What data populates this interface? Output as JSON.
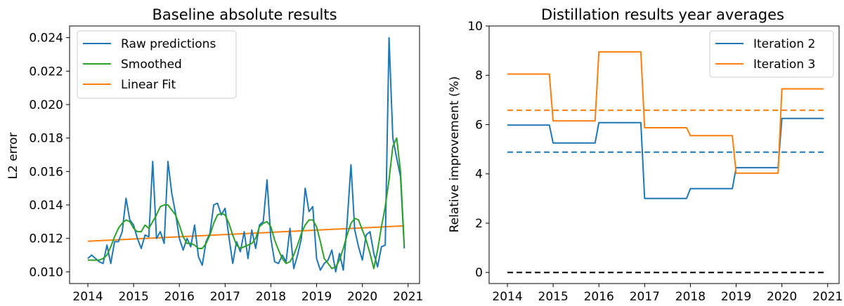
{
  "chart_data": [
    {
      "type": "line",
      "title": "Baseline absolute results",
      "xlabel": "",
      "ylabel": "L2 error",
      "xlim": [
        2013.6,
        2021.25
      ],
      "ylim": [
        0.0093,
        0.0247
      ],
      "xticks": [
        2014,
        2015,
        2016,
        2017,
        2018,
        2019,
        2020,
        2021
      ],
      "xtick_labels": [
        "2014",
        "2015",
        "2016",
        "2017",
        "2018",
        "2019",
        "2020",
        "2021"
      ],
      "yticks": [
        0.01,
        0.012,
        0.014,
        0.016,
        0.018,
        0.02,
        0.022,
        0.024
      ],
      "ytick_labels": [
        "0.010",
        "0.012",
        "0.014",
        "0.016",
        "0.018",
        "0.020",
        "0.022",
        "0.024"
      ],
      "legend_position": "top-left",
      "series": [
        {
          "name": "Raw predictions",
          "color": "#1f77b4",
          "x": [
            2014.0,
            2014.083,
            2014.167,
            2014.25,
            2014.333,
            2014.417,
            2014.5,
            2014.583,
            2014.667,
            2014.75,
            2014.833,
            2014.917,
            2015.0,
            2015.083,
            2015.167,
            2015.25,
            2015.333,
            2015.417,
            2015.5,
            2015.583,
            2015.667,
            2015.75,
            2015.833,
            2015.917,
            2016.0,
            2016.083,
            2016.167,
            2016.25,
            2016.333,
            2016.417,
            2016.5,
            2016.583,
            2016.667,
            2016.75,
            2016.833,
            2016.917,
            2017.0,
            2017.083,
            2017.167,
            2017.25,
            2017.333,
            2017.417,
            2017.5,
            2017.583,
            2017.667,
            2017.75,
            2017.833,
            2017.917,
            2018.0,
            2018.083,
            2018.167,
            2018.25,
            2018.333,
            2018.417,
            2018.5,
            2018.583,
            2018.667,
            2018.75,
            2018.833,
            2018.917,
            2019.0,
            2019.083,
            2019.167,
            2019.25,
            2019.333,
            2019.417,
            2019.5,
            2019.583,
            2019.667,
            2019.75,
            2019.833,
            2019.917,
            2020.0,
            2020.083,
            2020.167,
            2020.25,
            2020.333,
            2020.417,
            2020.5,
            2020.583,
            2020.667,
            2020.75,
            2020.833,
            2020.917
          ],
          "values": [
            0.0108,
            0.011,
            0.0108,
            0.0106,
            0.0105,
            0.0116,
            0.0105,
            0.0118,
            0.0118,
            0.0124,
            0.0144,
            0.0131,
            0.0128,
            0.012,
            0.0114,
            0.0122,
            0.0121,
            0.0166,
            0.012,
            0.0124,
            0.0117,
            0.0166,
            0.0147,
            0.0135,
            0.012,
            0.0113,
            0.012,
            0.0115,
            0.0128,
            0.0109,
            0.0104,
            0.0118,
            0.0123,
            0.014,
            0.0141,
            0.0134,
            0.0138,
            0.0121,
            0.0105,
            0.0118,
            0.0112,
            0.0124,
            0.0108,
            0.0125,
            0.0114,
            0.0128,
            0.013,
            0.0155,
            0.012,
            0.0106,
            0.0105,
            0.011,
            0.0106,
            0.0126,
            0.0102,
            0.011,
            0.012,
            0.015,
            0.0136,
            0.0139,
            0.0108,
            0.0101,
            0.0105,
            0.0107,
            0.0113,
            0.01,
            0.0111,
            0.0101,
            0.0129,
            0.0164,
            0.0125,
            0.0115,
            0.0107,
            0.0122,
            0.0124,
            0.0111,
            0.0103,
            0.0115,
            0.0116,
            0.024,
            0.018,
            0.0168,
            0.0157,
            0.0114
          ]
        },
        {
          "name": "Smoothed",
          "color": "#2ca02c",
          "x": [
            2014.0,
            2014.083,
            2014.167,
            2014.25,
            2014.333,
            2014.417,
            2014.5,
            2014.583,
            2014.667,
            2014.75,
            2014.833,
            2014.917,
            2015.0,
            2015.083,
            2015.167,
            2015.25,
            2015.333,
            2015.417,
            2015.5,
            2015.583,
            2015.667,
            2015.75,
            2015.833,
            2015.917,
            2016.0,
            2016.083,
            2016.167,
            2016.25,
            2016.333,
            2016.417,
            2016.5,
            2016.583,
            2016.667,
            2016.75,
            2016.833,
            2016.917,
            2017.0,
            2017.083,
            2017.167,
            2017.25,
            2017.333,
            2017.417,
            2017.5,
            2017.583,
            2017.667,
            2017.75,
            2017.833,
            2017.917,
            2018.0,
            2018.083,
            2018.167,
            2018.25,
            2018.333,
            2018.417,
            2018.5,
            2018.583,
            2018.667,
            2018.75,
            2018.833,
            2018.917,
            2019.0,
            2019.083,
            2019.167,
            2019.25,
            2019.333,
            2019.417,
            2019.5,
            2019.583,
            2019.667,
            2019.75,
            2019.833,
            2019.917,
            2020.0,
            2020.083,
            2020.167,
            2020.25,
            2020.333,
            2020.417,
            2020.5,
            2020.583,
            2020.667,
            2020.75,
            2020.833,
            2020.917
          ],
          "values": [
            0.0107,
            0.0107,
            0.0107,
            0.0107,
            0.0108,
            0.011,
            0.0115,
            0.0121,
            0.0126,
            0.0129,
            0.0131,
            0.013,
            0.0126,
            0.0124,
            0.0124,
            0.0128,
            0.0126,
            0.013,
            0.0134,
            0.0139,
            0.014,
            0.014,
            0.0137,
            0.0134,
            0.0128,
            0.0121,
            0.0117,
            0.0117,
            0.0116,
            0.0114,
            0.0114,
            0.0117,
            0.0122,
            0.0129,
            0.0134,
            0.0135,
            0.0134,
            0.0129,
            0.0122,
            0.0116,
            0.0114,
            0.0115,
            0.0116,
            0.0117,
            0.012,
            0.0127,
            0.0129,
            0.013,
            0.0127,
            0.0119,
            0.0113,
            0.0108,
            0.0105,
            0.0106,
            0.011,
            0.0116,
            0.0123,
            0.0128,
            0.0131,
            0.0131,
            0.0127,
            0.0118,
            0.0108,
            0.0105,
            0.0102,
            0.0103,
            0.0107,
            0.0114,
            0.0122,
            0.0129,
            0.0132,
            0.0131,
            0.0125,
            0.0119,
            0.0111,
            0.0102,
            0.0113,
            0.0127,
            0.0139,
            0.0155,
            0.0175,
            0.018,
            0.016,
            0.0115
          ]
        },
        {
          "name": "Linear Fit",
          "color": "#ff7f0e",
          "x": [
            2014.0,
            2020.917
          ],
          "values": [
            0.01183,
            0.01275
          ]
        }
      ]
    },
    {
      "type": "line",
      "title": "Distillation results year averages",
      "xlabel": "",
      "ylabel": "Relative improvement (%)",
      "xlim": [
        2013.6,
        2021.25
      ],
      "ylim": [
        -0.45,
        10
      ],
      "xticks": [
        2014,
        2015,
        2016,
        2017,
        2018,
        2019,
        2020,
        2021
      ],
      "xtick_labels": [
        "2014",
        "2015",
        "2016",
        "2017",
        "2018",
        "2019",
        "2020",
        "2021"
      ],
      "yticks": [
        0,
        2,
        4,
        6,
        8,
        10
      ],
      "ytick_labels": [
        "0",
        "2",
        "4",
        "6",
        "8",
        "10"
      ],
      "legend_position": "top-right",
      "series": [
        {
          "name": "Iteration 2",
          "color": "#1f77b4",
          "x": [
            2014.0,
            2014.917,
            2015.0,
            2015.917,
            2016.0,
            2016.917,
            2017.0,
            2017.917,
            2018.0,
            2018.917,
            2019.0,
            2019.917,
            2020.0,
            2020.917
          ],
          "values": [
            5.98,
            5.98,
            5.25,
            5.25,
            6.08,
            6.08,
            3.0,
            3.0,
            3.4,
            3.4,
            4.25,
            4.25,
            6.25,
            6.25
          ],
          "mean": 4.88
        },
        {
          "name": "Iteration 3",
          "color": "#ff7f0e",
          "x": [
            2014.0,
            2014.917,
            2015.0,
            2015.917,
            2016.0,
            2016.917,
            2017.0,
            2017.917,
            2018.0,
            2018.917,
            2019.0,
            2019.917,
            2020.0,
            2020.917
          ],
          "values": [
            8.05,
            8.05,
            6.15,
            6.15,
            8.95,
            8.95,
            5.87,
            5.87,
            5.55,
            5.55,
            4.03,
            4.03,
            7.45,
            7.45
          ],
          "mean": 6.58
        }
      ],
      "reference_line": {
        "value": 0,
        "color": "#000000",
        "style": "dashed"
      }
    }
  ]
}
